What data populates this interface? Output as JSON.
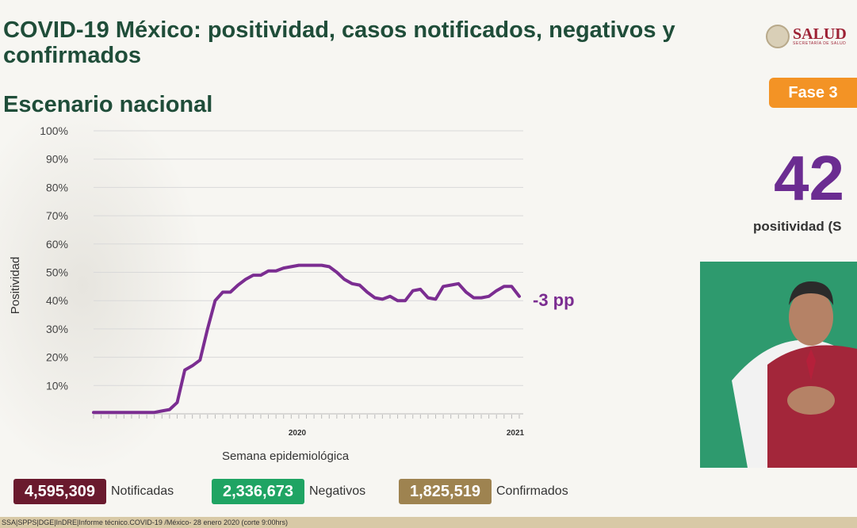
{
  "header": {
    "title": "COVID-19 México: positividad, casos notificados, negativos y confirmados",
    "subtitle": "Escenario nacional",
    "logo_text": "SALUD",
    "logo_subtext": "SECRETARÍA DE SALUD"
  },
  "phase_badge": "Fase 3",
  "big_stat": {
    "value": "42",
    "label": "positividad (S"
  },
  "chart_data": {
    "type": "line",
    "ylabel": "Positividad",
    "xlabel": "Semana epidemiológica",
    "ylim": [
      0,
      100
    ],
    "yticks": [
      "100%",
      "90%",
      "80%",
      "70%",
      "60%",
      "50%",
      "40%",
      "30%",
      "20%",
      "10%"
    ],
    "year_labels": [
      "2020",
      "2021"
    ],
    "annotation": "-3 pp",
    "color": "#7b2d91",
    "grid": true,
    "values": [
      0.5,
      0.5,
      0.5,
      0.5,
      0.5,
      0.5,
      0.5,
      0.5,
      0.5,
      1,
      1.5,
      4,
      15.5,
      17,
      19,
      30,
      40,
      43,
      43,
      45.5,
      47.5,
      49,
      49,
      50.5,
      50.5,
      51.5,
      52,
      52.5,
      52.5,
      52.5,
      52.5,
      52,
      50,
      47.5,
      46,
      45.5,
      43,
      41,
      40.5,
      41.5,
      40,
      40,
      43.5,
      44,
      41,
      40.5,
      45,
      45.5,
      46,
      43,
      41,
      41,
      41.5,
      43.5,
      45,
      45,
      41.5
    ]
  },
  "legend": [
    {
      "value": "4,595,309",
      "label": "Notificadas",
      "color": "#6a1a2e"
    },
    {
      "value": "2,336,673",
      "label": "Negativos",
      "color": "#1fa463"
    },
    {
      "value": "1,825,519",
      "label": "Confirmados",
      "color": "#9e8350"
    }
  ],
  "footer_text": "SSA|SPPS|DGE|InDRE|Informe técnico.COVID-19 /México- 28 enero 2020 (corte 9:00hrs)"
}
